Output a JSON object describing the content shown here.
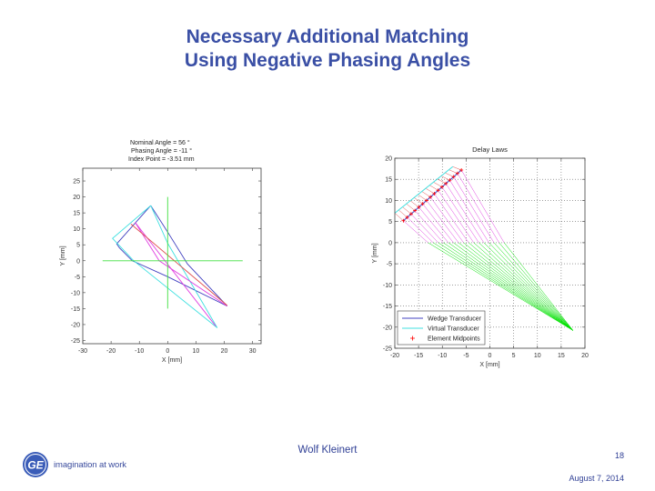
{
  "slide": {
    "title_line1": "Necessary Additional Matching",
    "title_line2": "Using Negative Phasing Angles",
    "footer": {
      "author": "Wolf Kleinert",
      "page_number": "18",
      "date": "August 7, 2014",
      "logo_tagline": "imagination at work",
      "logo_mark": "GE"
    },
    "colors": {
      "title": "#3a4fa5",
      "wedge": "#4040c0",
      "virtual": "#40e0e0",
      "ray_wedge": "#e040e0",
      "ray_specimen": "#00e000",
      "center_ray": "#e05050",
      "midpoint": "#ff0000",
      "axes_cross": "#40e040"
    }
  },
  "chart_data": [
    {
      "type": "line",
      "title": "",
      "annotation": {
        "line1": "Nominal Angle  =    56 °",
        "line2": "Phasing Angle  =   -11 °",
        "line3": "Index Point    = -3.51 mm"
      },
      "xlabel": "X [mm]",
      "ylabel": "Y [mm]",
      "xlim": [
        -30,
        33
      ],
      "ylim": [
        -26,
        29
      ],
      "xticks": [
        -30,
        -20,
        -10,
        0,
        10,
        20,
        30
      ],
      "yticks": [
        -25,
        -20,
        -15,
        -10,
        -5,
        0,
        5,
        10,
        15,
        20,
        25
      ],
      "grid": false,
      "series": [
        {
          "name": "wedge-outline",
          "color": "#4040c0",
          "points": [
            [
              -6,
              17.3
            ],
            [
              -18,
              5.3
            ],
            [
              -17,
              4
            ],
            [
              -12.5,
              0
            ],
            [
              0,
              -5
            ],
            [
              21,
              -14.2
            ],
            [
              7,
              -1
            ],
            [
              0,
              9
            ],
            [
              -6,
              17.3
            ]
          ]
        },
        {
          "name": "virtual-outline",
          "color": "#40e0e0",
          "points": [
            [
              -6,
              17.3
            ],
            [
              -19.5,
              7
            ],
            [
              -12,
              0
            ],
            [
              17.5,
              -21
            ],
            [
              0,
              5.5
            ],
            [
              -6,
              17.3
            ]
          ]
        },
        {
          "name": "ray-1",
          "color": "#e040e0",
          "points": [
            [
              -11.5,
              12
            ],
            [
              17,
              -20.5
            ]
          ]
        },
        {
          "name": "ray-2",
          "color": "#e040e0",
          "points": [
            [
              -11.5,
              12
            ],
            [
              -3,
              0
            ],
            [
              21,
              -14.2
            ]
          ]
        },
        {
          "name": "center-ray",
          "color": "#e05050",
          "points": [
            [
              -13,
              11.5
            ],
            [
              21,
              -14
            ]
          ]
        },
        {
          "name": "h-axis",
          "color": "#40e040",
          "points": [
            [
              -23,
              0
            ],
            [
              26.5,
              0
            ]
          ]
        },
        {
          "name": "v-axis",
          "color": "#40e040",
          "points": [
            [
              0,
              20
            ],
            [
              0,
              -15
            ]
          ]
        }
      ]
    },
    {
      "type": "line",
      "title": "Delay Laws",
      "xlabel": "X [mm]",
      "ylabel": "Y [mm]",
      "xlim": [
        -20,
        20
      ],
      "ylim": [
        -25,
        20
      ],
      "xticks": [
        -20,
        -15,
        -10,
        -5,
        0,
        5,
        10,
        15,
        20
      ],
      "yticks": [
        -25,
        -20,
        -15,
        -10,
        -5,
        0,
        5,
        10,
        15,
        20
      ],
      "grid": true,
      "legend": {
        "position": "lower left",
        "entries": [
          "Wedge Transducer",
          "Virtual Transducer",
          "Element Midpoints"
        ]
      },
      "elements": 16,
      "wedge_transducer": [
        [
          -18.2,
          5.2
        ],
        [
          -6,
          17.2
        ]
      ],
      "virtual_transducer": [
        [
          -20,
          7
        ],
        [
          -7.8,
          18
        ]
      ],
      "interface_rays_end": [
        [
          -13,
          0
        ],
        [
          3,
          0
        ]
      ],
      "focus_point": [
        17.5,
        -20.8
      ]
    }
  ]
}
